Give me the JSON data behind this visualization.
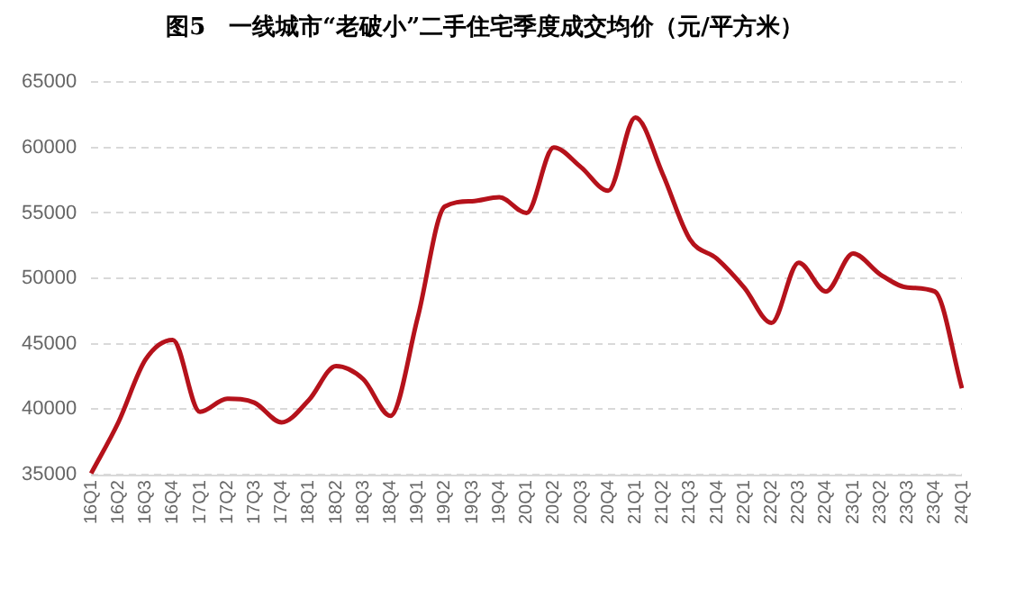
{
  "chart_data": {
    "type": "line",
    "title": "图5　一线城市“老破小”二手住宅季度成交均价（元/平方米）",
    "categories": [
      "16Q1",
      "16Q2",
      "16Q3",
      "16Q4",
      "17Q1",
      "17Q2",
      "17Q3",
      "17Q4",
      "18Q1",
      "18Q2",
      "18Q3",
      "18Q4",
      "19Q1",
      "19Q2",
      "19Q3",
      "19Q4",
      "20Q1",
      "20Q2",
      "20Q3",
      "20Q4",
      "21Q1",
      "21Q2",
      "21Q3",
      "21Q4",
      "22Q1",
      "22Q2",
      "22Q3",
      "22Q4",
      "23Q1",
      "23Q2",
      "23Q3",
      "23Q4",
      "24Q1"
    ],
    "series": [
      {
        "color": "#b5121b",
        "values": [
          35100,
          39000,
          43800,
          45300,
          39800,
          40800,
          40500,
          39000,
          40700,
          43300,
          42300,
          39500,
          47000,
          55500,
          55900,
          56200,
          55000,
          60000,
          58500,
          56700,
          62300,
          58000,
          53000,
          51500,
          49300,
          46600,
          51200,
          49000,
          51900,
          50300,
          49300,
          49000,
          41600
        ]
      }
    ],
    "ylim": [
      35000,
      65000
    ],
    "yticks": [
      35000,
      40000,
      45000,
      50000,
      55000,
      60000,
      65000
    ],
    "grid": "y",
    "legend": false,
    "marker": "none",
    "line_style": "solid"
  }
}
